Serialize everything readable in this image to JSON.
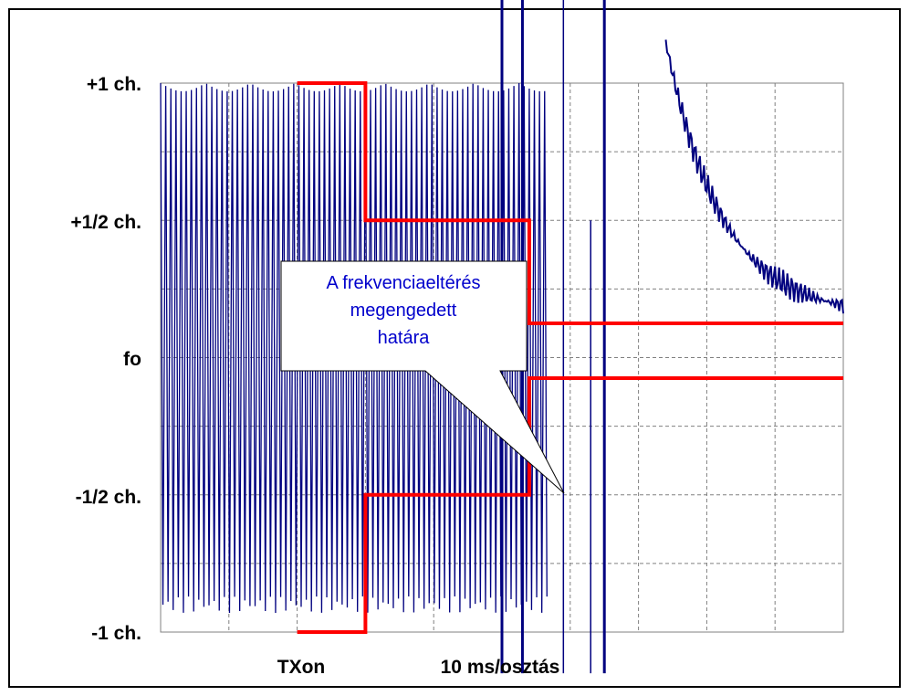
{
  "chart_data": {
    "type": "line",
    "title": "",
    "xlabel": "10 ms/osztás",
    "x_marker_label": "TXon",
    "ylabel": "",
    "y_tick_labels": [
      "+1 ch.",
      "+1/2 ch.",
      "fo",
      "-1/2 ch.",
      "-1 ch."
    ],
    "y_tick_values": [
      1,
      0.5,
      0,
      -0.5,
      -1
    ],
    "ylim": [
      -1,
      1
    ],
    "x_divisions": 10,
    "x_unit_per_division": "10 ms",
    "grid": true,
    "limit_mask": {
      "name": "A frekvenciaeltérés megengedett határa",
      "upper": {
        "x": [
          2,
          3,
          3,
          5.4,
          5.4,
          10
        ],
        "y": [
          1,
          1,
          0.5,
          0.5,
          0.125,
          0.125
        ]
      },
      "lower": {
        "x": [
          2,
          3,
          3,
          5.4,
          5.4,
          10
        ],
        "y": [
          -1,
          -1,
          -0.5,
          -0.5,
          -0.075,
          -0.075
        ]
      }
    },
    "signal": {
      "oscillation": {
        "x_start": 0,
        "x_end": 5.7,
        "y_min": -0.9,
        "y_max": 1.0
      },
      "spikes_x": [
        5.0,
        5.3,
        6.5
      ],
      "decay": {
        "x_start": 7.4,
        "x_end": 10,
        "y_start": 1.0,
        "y_end": 0.2
      }
    },
    "colors": {
      "signal": "#00007f",
      "limit": "#ff0000",
      "grid": "#808080",
      "callout_text": "#0000cc"
    }
  },
  "callout": {
    "lines": [
      "A frekvenciaeltérés",
      "megengedett",
      "határa"
    ]
  }
}
